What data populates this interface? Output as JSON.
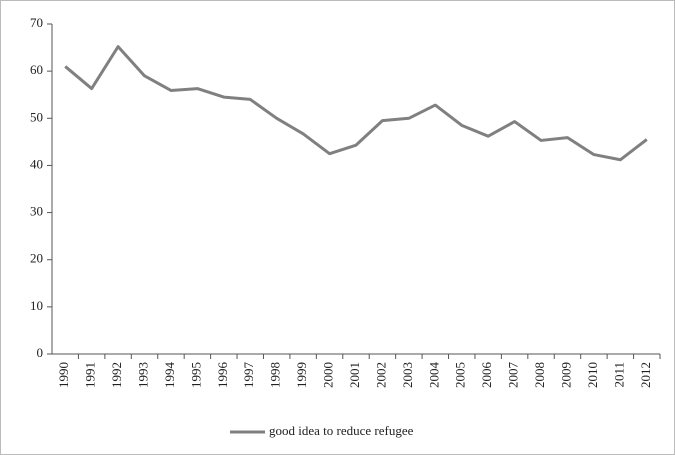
{
  "chart_data": {
    "type": "line",
    "categories": [
      "1990",
      "1991",
      "1992",
      "1993",
      "1994",
      "1995",
      "1996",
      "1997",
      "1998",
      "1999",
      "2000",
      "2001",
      "2002",
      "2003",
      "2004",
      "2005",
      "2006",
      "2007",
      "2008",
      "2009",
      "2010",
      "2011",
      "2012"
    ],
    "series": [
      {
        "name": "good idea to reduce refugee",
        "color": "#808080",
        "values": [
          61,
          56.3,
          65.2,
          59,
          55.9,
          56.3,
          54.5,
          54,
          50,
          46.7,
          42.5,
          44.3,
          49.5,
          50,
          52.8,
          48.5,
          46.2,
          49.3,
          45.3,
          45.9,
          42.3,
          41.2,
          45.5
        ]
      }
    ],
    "ylim": [
      0,
      70
    ],
    "yticks": [
      0,
      10,
      20,
      30,
      40,
      50,
      60,
      70
    ],
    "grid": false,
    "legend": "bottom"
  }
}
